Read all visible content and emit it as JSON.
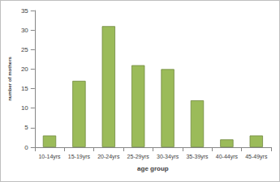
{
  "chart_data": {
    "type": "bar",
    "categories": [
      "10-14yrs",
      "15-19yrs",
      "20-24yrs",
      "25-29yrs",
      "30-34yrs",
      "35-39yrs",
      "40-44yrs",
      "45-49yrs"
    ],
    "values": [
      3,
      17,
      31,
      21,
      20,
      12,
      2,
      3
    ],
    "color": "#9bbb59",
    "xlabel": "age group",
    "ylabel": "number of mothers",
    "ylim": [
      0,
      35
    ],
    "yticks": [
      0,
      5,
      10,
      15,
      20,
      25,
      30,
      35
    ],
    "grid": false
  }
}
